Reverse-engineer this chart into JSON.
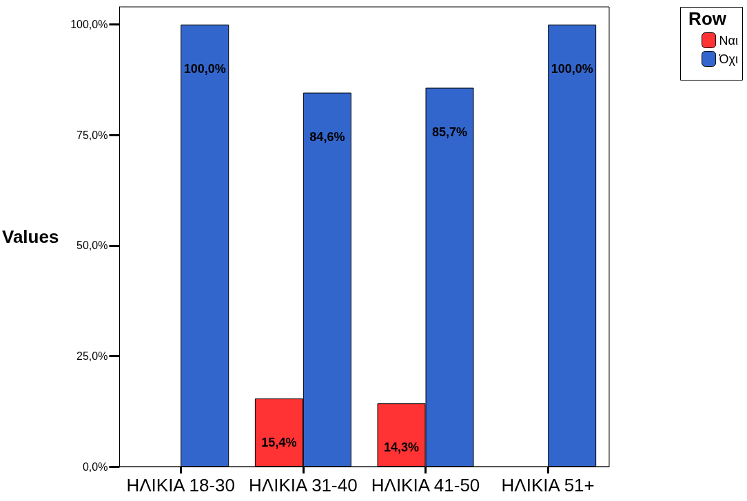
{
  "chart_data": {
    "type": "bar",
    "ylabel": "Values",
    "legend_title": "Row",
    "categories": [
      "ΗΛΙΚΙΑ 18-30",
      "ΗΛΙΚΙΑ 31-40",
      "ΗΛΙΚΙΑ 41-50",
      "ΗΛΙΚΙΑ 51+"
    ],
    "series": [
      {
        "name": "Ναι",
        "color": "#ff3333",
        "values": [
          null,
          15.4,
          14.3,
          null
        ],
        "value_labels": [
          null,
          "15,4%",
          "14,3%",
          null
        ]
      },
      {
        "name": "Όχι",
        "color": "#3366cc",
        "values": [
          100,
          84.6,
          85.7,
          100
        ],
        "value_labels": [
          "100,0%",
          "84,6%",
          "85,7%",
          "100,0%"
        ]
      }
    ],
    "ylim": [
      0,
      104
    ],
    "yticks": [
      {
        "value": 0,
        "label": "0,0%"
      },
      {
        "value": 25,
        "label": "25,0%"
      },
      {
        "value": 50,
        "label": "50,0%"
      },
      {
        "value": 75,
        "label": "75,0%"
      },
      {
        "value": 100,
        "label": "100,0%"
      }
    ],
    "legend": "top right"
  }
}
